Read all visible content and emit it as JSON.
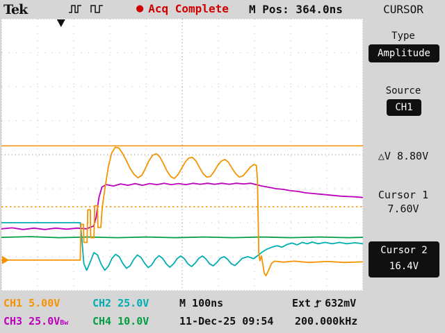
{
  "top_bar": {
    "logo": "Tek",
    "acq_dot": "●",
    "acq_status": "Acq Complete",
    "m_pos": "M Pos: 364.0ns",
    "menu_title": "CURSOR"
  },
  "sidebar": {
    "type_label": "Type",
    "type_value": "Amplitude",
    "source_label": "Source",
    "source_value": "CH1",
    "delta_value": "△V 8.80V",
    "cursor1_label": "Cursor 1",
    "cursor1_value": "7.60V",
    "cursor2_label": "Cursor 2",
    "cursor2_value": "16.4V"
  },
  "readouts": {
    "ch1": {
      "label": "CH1",
      "value": "5.00V"
    },
    "ch2": {
      "label": "CH2",
      "value": "25.0V"
    },
    "ch3": {
      "label": "CH3",
      "value": "25.0V",
      "suffix": "Bw"
    },
    "ch4": {
      "label": "CH4",
      "value": "10.0V"
    },
    "timebase": "M 100ns",
    "trigger_source": "Ext",
    "trigger_level": "632mV",
    "datetime": "11-Dec-25 09:54",
    "frequency": "200.000kHz"
  },
  "colors": {
    "ch1": "#f59300",
    "ch2": "#00aeb2",
    "ch3": "#bc00bc",
    "ch4": "#009e40",
    "alert": "#cf0000",
    "text": "#111111"
  },
  "chart_data": {
    "type": "line",
    "title": "Oscilloscope waveform display",
    "grid": {
      "x_divisions": 10,
      "y_divisions": 8,
      "grid_on": true
    },
    "timebase": "100ns/div",
    "cursor_color": "#f59300",
    "cursors": [
      {
        "name": "Cursor 2",
        "value": "16.4V",
        "y_div": 3.74,
        "style": "solid"
      },
      {
        "name": "Cursor 1",
        "value": "7.60V",
        "y_div": 5.53,
        "style": "dashed"
      }
    ],
    "trigger_marker": {
      "x_div": 1.65
    },
    "channel_markers": [
      {
        "label": "1",
        "y_div": 7.1,
        "color": "#f59300"
      }
    ],
    "series": [
      {
        "name": "CH3",
        "scale": "25.0V/div",
        "color": "#bc00bc",
        "points": [
          [
            0,
            6.18
          ],
          [
            0.3,
            6.15
          ],
          [
            0.6,
            6.2
          ],
          [
            0.9,
            6.16
          ],
          [
            1.2,
            6.2
          ],
          [
            1.5,
            6.16
          ],
          [
            1.8,
            6.19
          ],
          [
            2.1,
            6.16
          ],
          [
            2.35,
            6.18
          ],
          [
            2.55,
            6.1
          ],
          [
            2.62,
            5.85
          ],
          [
            2.7,
            5.25
          ],
          [
            2.78,
            4.95
          ],
          [
            2.9,
            4.88
          ],
          [
            3.1,
            4.92
          ],
          [
            3.3,
            4.86
          ],
          [
            3.5,
            4.9
          ],
          [
            3.7,
            4.85
          ],
          [
            3.9,
            4.9
          ],
          [
            4.1,
            4.85
          ],
          [
            4.3,
            4.88
          ],
          [
            4.5,
            4.84
          ],
          [
            4.7,
            4.88
          ],
          [
            4.9,
            4.85
          ],
          [
            5.1,
            4.88
          ],
          [
            5.3,
            4.84
          ],
          [
            5.5,
            4.87
          ],
          [
            5.7,
            4.84
          ],
          [
            5.9,
            4.87
          ],
          [
            6.1,
            4.84
          ],
          [
            6.3,
            4.87
          ],
          [
            6.5,
            4.84
          ],
          [
            6.7,
            4.86
          ],
          [
            6.9,
            4.84
          ],
          [
            7.05,
            4.88
          ],
          [
            7.2,
            4.92
          ],
          [
            7.4,
            4.96
          ],
          [
            7.6,
            5.0
          ],
          [
            7.8,
            5.02
          ],
          [
            8.0,
            5.06
          ],
          [
            8.2,
            5.08
          ],
          [
            8.4,
            5.12
          ],
          [
            8.6,
            5.14
          ],
          [
            8.8,
            5.16
          ],
          [
            9.0,
            5.18
          ],
          [
            9.2,
            5.2
          ],
          [
            9.4,
            5.22
          ],
          [
            9.6,
            5.23
          ],
          [
            9.8,
            5.24
          ],
          [
            10,
            5.26
          ]
        ]
      },
      {
        "name": "CH4",
        "scale": "10.0V/div",
        "color": "#009e40",
        "points": [
          [
            0,
            6.43
          ],
          [
            0.8,
            6.41
          ],
          [
            1.6,
            6.44
          ],
          [
            2.4,
            6.42
          ],
          [
            3.2,
            6.44
          ],
          [
            4.0,
            6.42
          ],
          [
            4.8,
            6.44
          ],
          [
            5.6,
            6.42
          ],
          [
            6.4,
            6.44
          ],
          [
            7.2,
            6.42
          ],
          [
            8.0,
            6.44
          ],
          [
            8.8,
            6.42
          ],
          [
            9.6,
            6.44
          ],
          [
            10,
            6.43
          ]
        ]
      },
      {
        "name": "CH2",
        "scale": "25.0V/div",
        "color": "#00aeb2",
        "points": [
          [
            0,
            6.0
          ],
          [
            2.18,
            6.0
          ],
          [
            2.22,
            6.4
          ],
          [
            2.28,
            7.2
          ],
          [
            2.36,
            7.4
          ],
          [
            2.46,
            7.15
          ],
          [
            2.56,
            6.88
          ],
          [
            2.66,
            6.95
          ],
          [
            2.76,
            7.22
          ],
          [
            2.86,
            7.4
          ],
          [
            2.96,
            7.28
          ],
          [
            3.06,
            7.05
          ],
          [
            3.16,
            6.93
          ],
          [
            3.26,
            7.0
          ],
          [
            3.36,
            7.2
          ],
          [
            3.46,
            7.34
          ],
          [
            3.56,
            7.27
          ],
          [
            3.66,
            7.08
          ],
          [
            3.76,
            6.95
          ],
          [
            3.86,
            7.02
          ],
          [
            3.96,
            7.19
          ],
          [
            4.06,
            7.32
          ],
          [
            4.16,
            7.24
          ],
          [
            4.26,
            7.07
          ],
          [
            4.36,
            6.97
          ],
          [
            4.46,
            7.05
          ],
          [
            4.56,
            7.21
          ],
          [
            4.66,
            7.31
          ],
          [
            4.76,
            7.21
          ],
          [
            4.86,
            7.06
          ],
          [
            4.96,
            6.98
          ],
          [
            5.06,
            7.06
          ],
          [
            5.16,
            7.21
          ],
          [
            5.26,
            7.29
          ],
          [
            5.36,
            7.19
          ],
          [
            5.46,
            7.05
          ],
          [
            5.56,
            6.98
          ],
          [
            5.66,
            7.07
          ],
          [
            5.76,
            7.21
          ],
          [
            5.86,
            7.27
          ],
          [
            5.96,
            7.17
          ],
          [
            6.06,
            7.04
          ],
          [
            6.16,
            7.0
          ],
          [
            6.26,
            7.08
          ],
          [
            6.36,
            7.21
          ],
          [
            6.46,
            7.26
          ],
          [
            6.56,
            7.16
          ],
          [
            6.66,
            7.05
          ],
          [
            6.82,
            7.0
          ],
          [
            6.98,
            7.06
          ],
          [
            7.1,
            6.96
          ],
          [
            7.22,
            6.86
          ],
          [
            7.34,
            6.78
          ],
          [
            7.48,
            6.72
          ],
          [
            7.62,
            6.68
          ],
          [
            7.76,
            6.72
          ],
          [
            7.9,
            6.64
          ],
          [
            8.04,
            6.6
          ],
          [
            8.18,
            6.65
          ],
          [
            8.32,
            6.58
          ],
          [
            8.46,
            6.62
          ],
          [
            8.6,
            6.57
          ],
          [
            8.76,
            6.62
          ],
          [
            8.95,
            6.58
          ],
          [
            9.15,
            6.62
          ],
          [
            9.35,
            6.58
          ],
          [
            9.55,
            6.62
          ],
          [
            9.78,
            6.59
          ],
          [
            10,
            6.62
          ]
        ]
      },
      {
        "name": "CH1",
        "scale": "5.00V/div",
        "color": "#f59300",
        "points": [
          [
            0,
            7.1
          ],
          [
            2.18,
            7.1
          ],
          [
            2.2,
            6.05
          ],
          [
            2.27,
            6.05
          ],
          [
            2.28,
            6.58
          ],
          [
            2.37,
            6.58
          ],
          [
            2.39,
            5.62
          ],
          [
            2.46,
            5.62
          ],
          [
            2.47,
            6.44
          ],
          [
            2.56,
            6.44
          ],
          [
            2.58,
            5.5
          ],
          [
            2.66,
            5.5
          ],
          [
            2.67,
            6.14
          ],
          [
            2.75,
            6.14
          ],
          [
            2.79,
            5.55
          ],
          [
            2.87,
            4.95
          ],
          [
            2.96,
            4.35
          ],
          [
            3.05,
            3.95
          ],
          [
            3.15,
            3.78
          ],
          [
            3.25,
            3.8
          ],
          [
            3.35,
            3.96
          ],
          [
            3.45,
            4.16
          ],
          [
            3.56,
            4.4
          ],
          [
            3.67,
            4.58
          ],
          [
            3.78,
            4.68
          ],
          [
            3.88,
            4.61
          ],
          [
            3.98,
            4.41
          ],
          [
            4.08,
            4.18
          ],
          [
            4.18,
            4.02
          ],
          [
            4.28,
            3.97
          ],
          [
            4.38,
            4.06
          ],
          [
            4.48,
            4.26
          ],
          [
            4.58,
            4.48
          ],
          [
            4.68,
            4.64
          ],
          [
            4.78,
            4.7
          ],
          [
            4.88,
            4.59
          ],
          [
            4.98,
            4.41
          ],
          [
            5.08,
            4.22
          ],
          [
            5.18,
            4.1
          ],
          [
            5.28,
            4.08
          ],
          [
            5.38,
            4.18
          ],
          [
            5.48,
            4.38
          ],
          [
            5.58,
            4.56
          ],
          [
            5.68,
            4.66
          ],
          [
            5.78,
            4.64
          ],
          [
            5.88,
            4.5
          ],
          [
            5.98,
            4.32
          ],
          [
            6.08,
            4.19
          ],
          [
            6.18,
            4.14
          ],
          [
            6.28,
            4.22
          ],
          [
            6.38,
            4.4
          ],
          [
            6.48,
            4.56
          ],
          [
            6.58,
            4.66
          ],
          [
            6.68,
            4.62
          ],
          [
            6.78,
            4.5
          ],
          [
            6.88,
            4.37
          ],
          [
            6.98,
            4.29
          ],
          [
            7.05,
            4.31
          ],
          [
            7.08,
            4.7
          ],
          [
            7.1,
            5.8
          ],
          [
            7.12,
            6.9
          ],
          [
            7.15,
            7.12
          ],
          [
            7.19,
            6.98
          ],
          [
            7.23,
            7.22
          ],
          [
            7.27,
            7.48
          ],
          [
            7.32,
            7.56
          ],
          [
            7.39,
            7.4
          ],
          [
            7.47,
            7.2
          ],
          [
            7.55,
            7.13
          ],
          [
            7.8,
            7.16
          ],
          [
            8.1,
            7.13
          ],
          [
            8.5,
            7.17
          ],
          [
            9.0,
            7.14
          ],
          [
            9.5,
            7.17
          ],
          [
            10,
            7.15
          ]
        ]
      }
    ]
  }
}
